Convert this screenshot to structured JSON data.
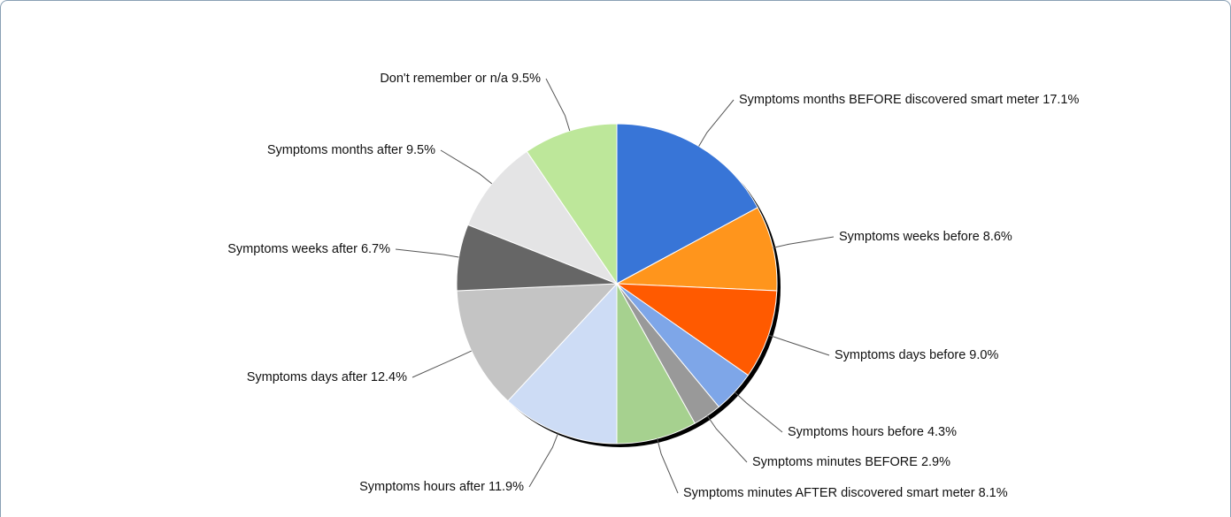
{
  "chart_data": {
    "type": "pie",
    "categories": [
      "Symptoms months BEFORE discovered smart meter",
      "Symptoms weeks before",
      "Symptoms days before",
      "Symptoms hours before",
      "Symptoms minutes BEFORE",
      "Symptoms minutes AFTER discovered smart meter",
      "Symptoms hours after",
      "Symptoms days after",
      "Symptoms weeks after",
      "Symptoms months after",
      "Don't remember or n/a"
    ],
    "values": [
      17.1,
      8.6,
      9.0,
      4.3,
      2.9,
      8.1,
      11.9,
      12.4,
      6.7,
      9.5,
      9.5
    ],
    "value_labels": [
      "17.1%",
      "8.6%",
      "9.0%",
      "4.3%",
      "2.9%",
      "8.1%",
      "11.9%",
      "12.4%",
      "6.7%",
      "9.5%",
      "9.5%"
    ],
    "colors": [
      "#3875d7",
      "#ff951c",
      "#ff5a00",
      "#7ea6e8",
      "#999999",
      "#a6d18f",
      "#cddcf5",
      "#c4c4c4",
      "#666666",
      "#e4e4e5",
      "#bde79a"
    ]
  }
}
